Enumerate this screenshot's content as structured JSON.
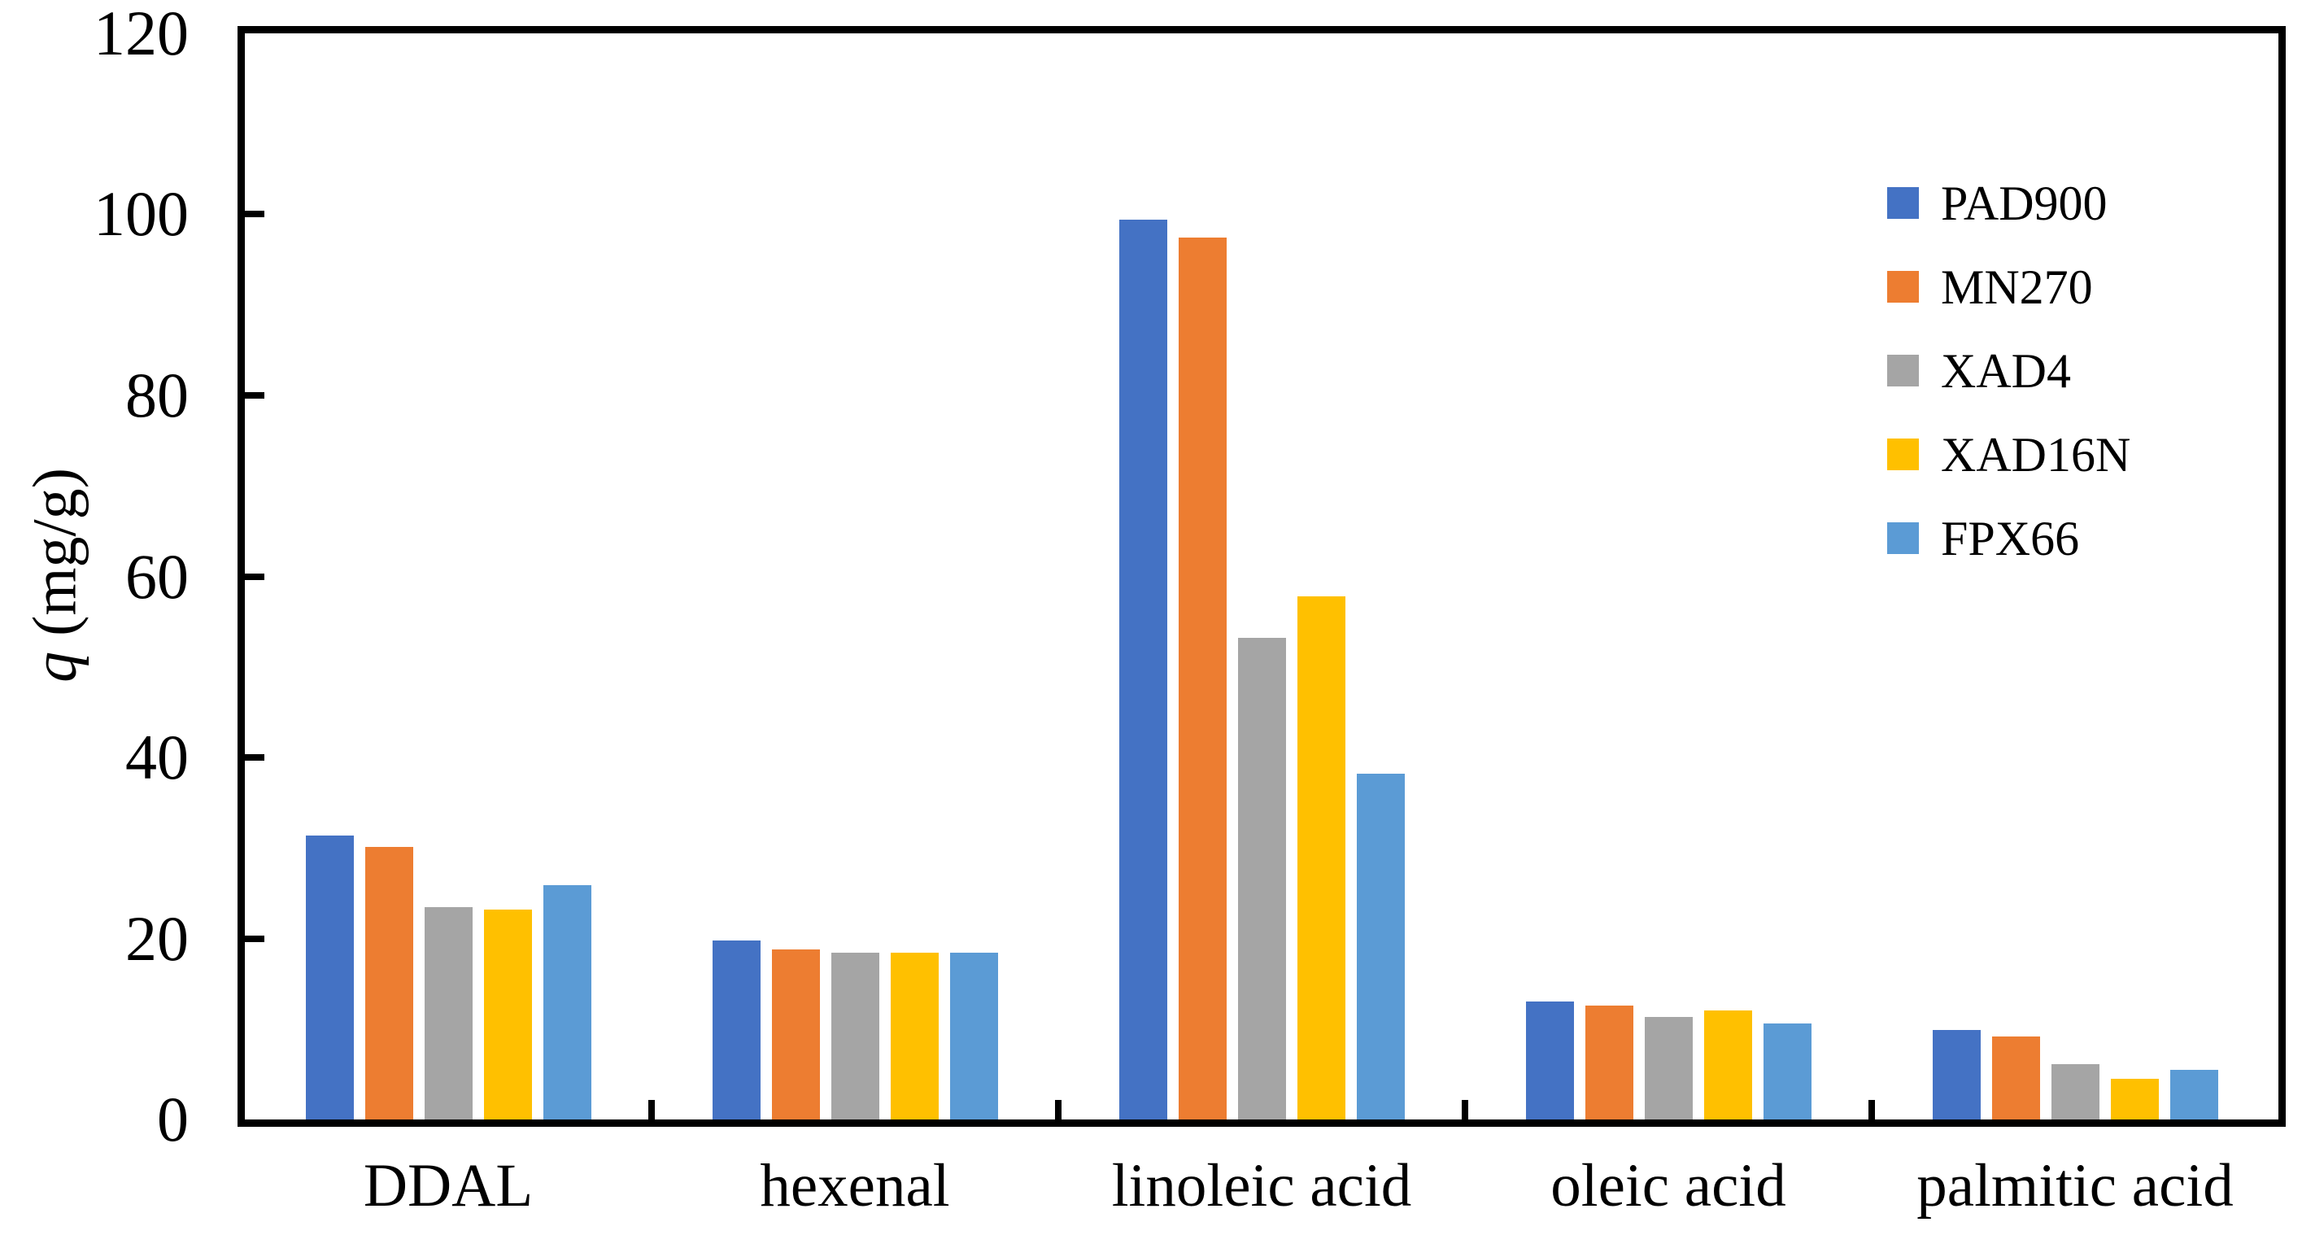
{
  "chart_data": {
    "type": "bar",
    "title": "",
    "xlabel": "",
    "ylabel": "q (mg/g)",
    "ylabel_italic_part": "q",
    "ylabel_rest_part": " (mg/g)",
    "categories": [
      "DDAL",
      "hexenal",
      "linoleic acid",
      "oleic acid",
      "palmitic acid"
    ],
    "series": [
      {
        "name": "PAD900",
        "color": "#4472C4",
        "values": [
          31.4,
          19.8,
          99.4,
          13.0,
          9.9
        ]
      },
      {
        "name": "MN270",
        "color": "#ED7D31",
        "values": [
          30.1,
          18.8,
          97.4,
          12.6,
          9.2
        ]
      },
      {
        "name": "XAD4",
        "color": "#A5A5A5",
        "values": [
          23.5,
          18.4,
          53.2,
          11.3,
          6.1
        ]
      },
      {
        "name": "XAD16N",
        "color": "#FFC000",
        "values": [
          23.2,
          18.4,
          57.8,
          12.0,
          4.5
        ]
      },
      {
        "name": "FPX66",
        "color": "#5B9BD5",
        "values": [
          25.9,
          18.4,
          38.2,
          10.6,
          5.5
        ]
      }
    ],
    "ylim": [
      0,
      120
    ],
    "yticks": [
      0,
      20,
      40,
      60,
      80,
      100,
      120
    ],
    "grid": false,
    "legend_position": "upper-right-inside",
    "axis_color": "#000000",
    "plot_background": "#FFFFFF",
    "tick_direction": "in"
  }
}
